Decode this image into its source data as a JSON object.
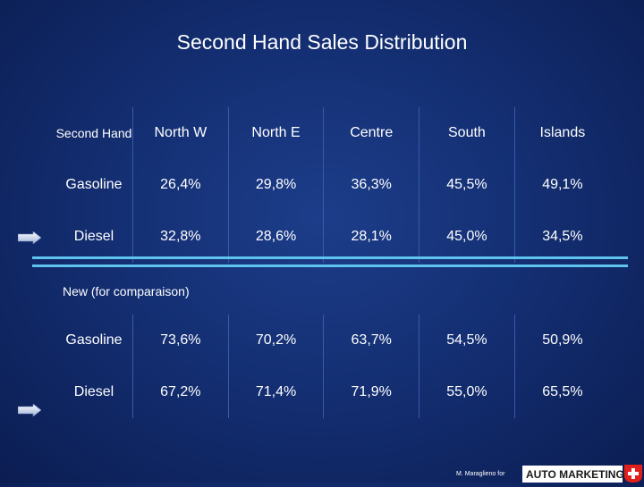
{
  "title": "Second Hand Sales Distribution",
  "table1": {
    "corner": "Second Hand",
    "columns": [
      "North W",
      "North E",
      "Centre",
      "South",
      "Islands"
    ],
    "rows": [
      {
        "label": "Gasoline",
        "values": [
          "26,4%",
          "29,8%",
          "36,3%",
          "45,5%",
          "49,1%"
        ]
      },
      {
        "label": "Diesel",
        "values": [
          "32,8%",
          "28,6%",
          "28,1%",
          "45,0%",
          "34,5%"
        ]
      }
    ]
  },
  "new_label": "New (for comparaison)",
  "table2": {
    "rows": [
      {
        "label": "Gasoline",
        "values": [
          "73,6%",
          "70,2%",
          "63,7%",
          "54,5%",
          "50,9%"
        ]
      },
      {
        "label": "Diesel",
        "values": [
          "67,2%",
          "71,4%",
          "71,9%",
          "55,0%",
          "65,5%"
        ]
      }
    ]
  },
  "footer": {
    "author": "M. Maraglieno for",
    "logo_text": "AUTO MARKETING"
  },
  "colors": {
    "background": "#142f73",
    "separator": "#5ec3ee",
    "logo_red": "#e0201b"
  },
  "icons": [
    "arrow-right-icon",
    "swiss-cross-icon"
  ]
}
